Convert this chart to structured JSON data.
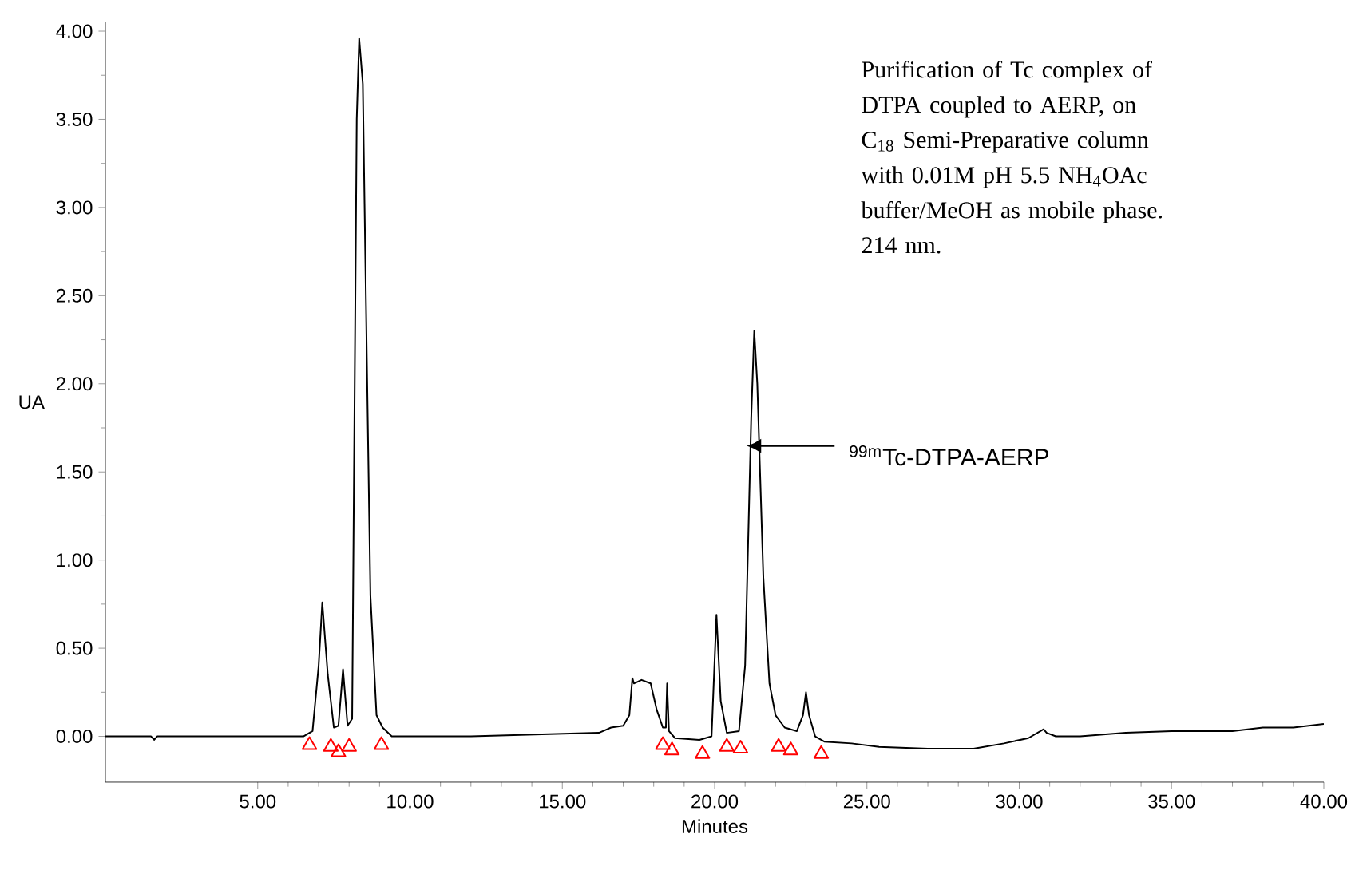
{
  "chart_data": {
    "type": "line",
    "xlabel": "Minutes",
    "ylabel": "UA",
    "xlim": [
      0,
      40
    ],
    "ylim": [
      -0.26,
      4.05
    ],
    "xticks": [
      {
        "value": 5,
        "label": "5.00"
      },
      {
        "value": 10,
        "label": "10.00"
      },
      {
        "value": 15,
        "label": "15.00"
      },
      {
        "value": 20,
        "label": "20.00"
      },
      {
        "value": 25,
        "label": "25.00"
      },
      {
        "value": 30,
        "label": "30.00"
      },
      {
        "value": 35,
        "label": "35.00"
      },
      {
        "value": 40,
        "label": "40.00"
      }
    ],
    "yticks": [
      {
        "value": 0,
        "label": "0.00"
      },
      {
        "value": 0.5,
        "label": "0.50"
      },
      {
        "value": 1,
        "label": "1.00"
      },
      {
        "value": 1.5,
        "label": "1.50"
      },
      {
        "value": 2,
        "label": "2.00"
      },
      {
        "value": 2.5,
        "label": "2.50"
      },
      {
        "value": 3,
        "label": "3.00"
      },
      {
        "value": 3.5,
        "label": "3.50"
      },
      {
        "value": 4,
        "label": "4.00"
      }
    ],
    "series": [
      {
        "color": "#000000",
        "x": [
          0,
          1.5,
          1.6,
          1.7,
          3,
          6.5,
          6.8,
          7.0,
          7.12,
          7.3,
          7.5,
          7.65,
          7.8,
          7.95,
          8.1,
          8.25,
          8.33,
          8.45,
          8.55,
          8.7,
          8.9,
          9.1,
          9.4,
          12,
          16.2,
          16.6,
          17.0,
          17.2,
          17.3,
          17.35,
          17.6,
          17.9,
          18.1,
          18.3,
          18.4,
          18.44,
          18.5,
          18.7,
          19.5,
          19.9,
          20.06,
          20.2,
          20.4,
          20.8,
          21.0,
          21.2,
          21.3,
          21.4,
          21.6,
          21.8,
          22.0,
          22.3,
          22.7,
          22.9,
          23.0,
          23.1,
          23.3,
          23.6,
          24.5,
          25.4,
          27,
          28.5,
          29.5,
          30.3,
          30.8,
          30.9,
          31.2,
          32,
          33.5,
          35,
          37,
          38,
          39,
          40
        ],
        "values": [
          0,
          0,
          -0.02,
          0,
          0,
          0,
          0.03,
          0.4,
          0.76,
          0.35,
          0.05,
          0.06,
          0.38,
          0.06,
          0.1,
          3.5,
          3.96,
          3.7,
          2.5,
          0.8,
          0.12,
          0.05,
          0,
          0,
          0.02,
          0.05,
          0.06,
          0.12,
          0.33,
          0.3,
          0.32,
          0.3,
          0.15,
          0.05,
          0.05,
          0.3,
          0.03,
          -0.01,
          -0.02,
          0.0,
          0.69,
          0.2,
          0.02,
          0.03,
          0.4,
          1.8,
          2.3,
          2.0,
          0.9,
          0.3,
          0.12,
          0.05,
          0.03,
          0.12,
          0.25,
          0.12,
          0.0,
          -0.03,
          -0.04,
          -0.06,
          -0.07,
          -0.07,
          -0.04,
          -0.01,
          0.04,
          0.02,
          0.0,
          0.0,
          0.02,
          0.03,
          0.03,
          0.05,
          0.05,
          0.07
        ]
      },
      {
        "type": "scatter",
        "marker": "triangle",
        "color": "#ff0000",
        "x": [
          6.7,
          7.4,
          7.65,
          8.0,
          9.06,
          18.3,
          18.6,
          19.6,
          20.4,
          20.85,
          22.1,
          22.5,
          23.5
        ],
        "values": [
          -0.05,
          -0.06,
          -0.09,
          -0.06,
          -0.05,
          -0.05,
          -0.08,
          -0.1,
          -0.06,
          -0.07,
          -0.06,
          -0.08,
          -0.1
        ]
      }
    ],
    "annotations": [
      "Purification of Tc complex of DTPA coupled to AERP, on C$_{18}$ Semi-Preparative column with 0.01M pH 5.5 NH$_{4}$OAc buffer/MeOH as mobile phase. 214 nm.",
      "$^{99m}$Tc-DTPA-AERP"
    ]
  }
}
